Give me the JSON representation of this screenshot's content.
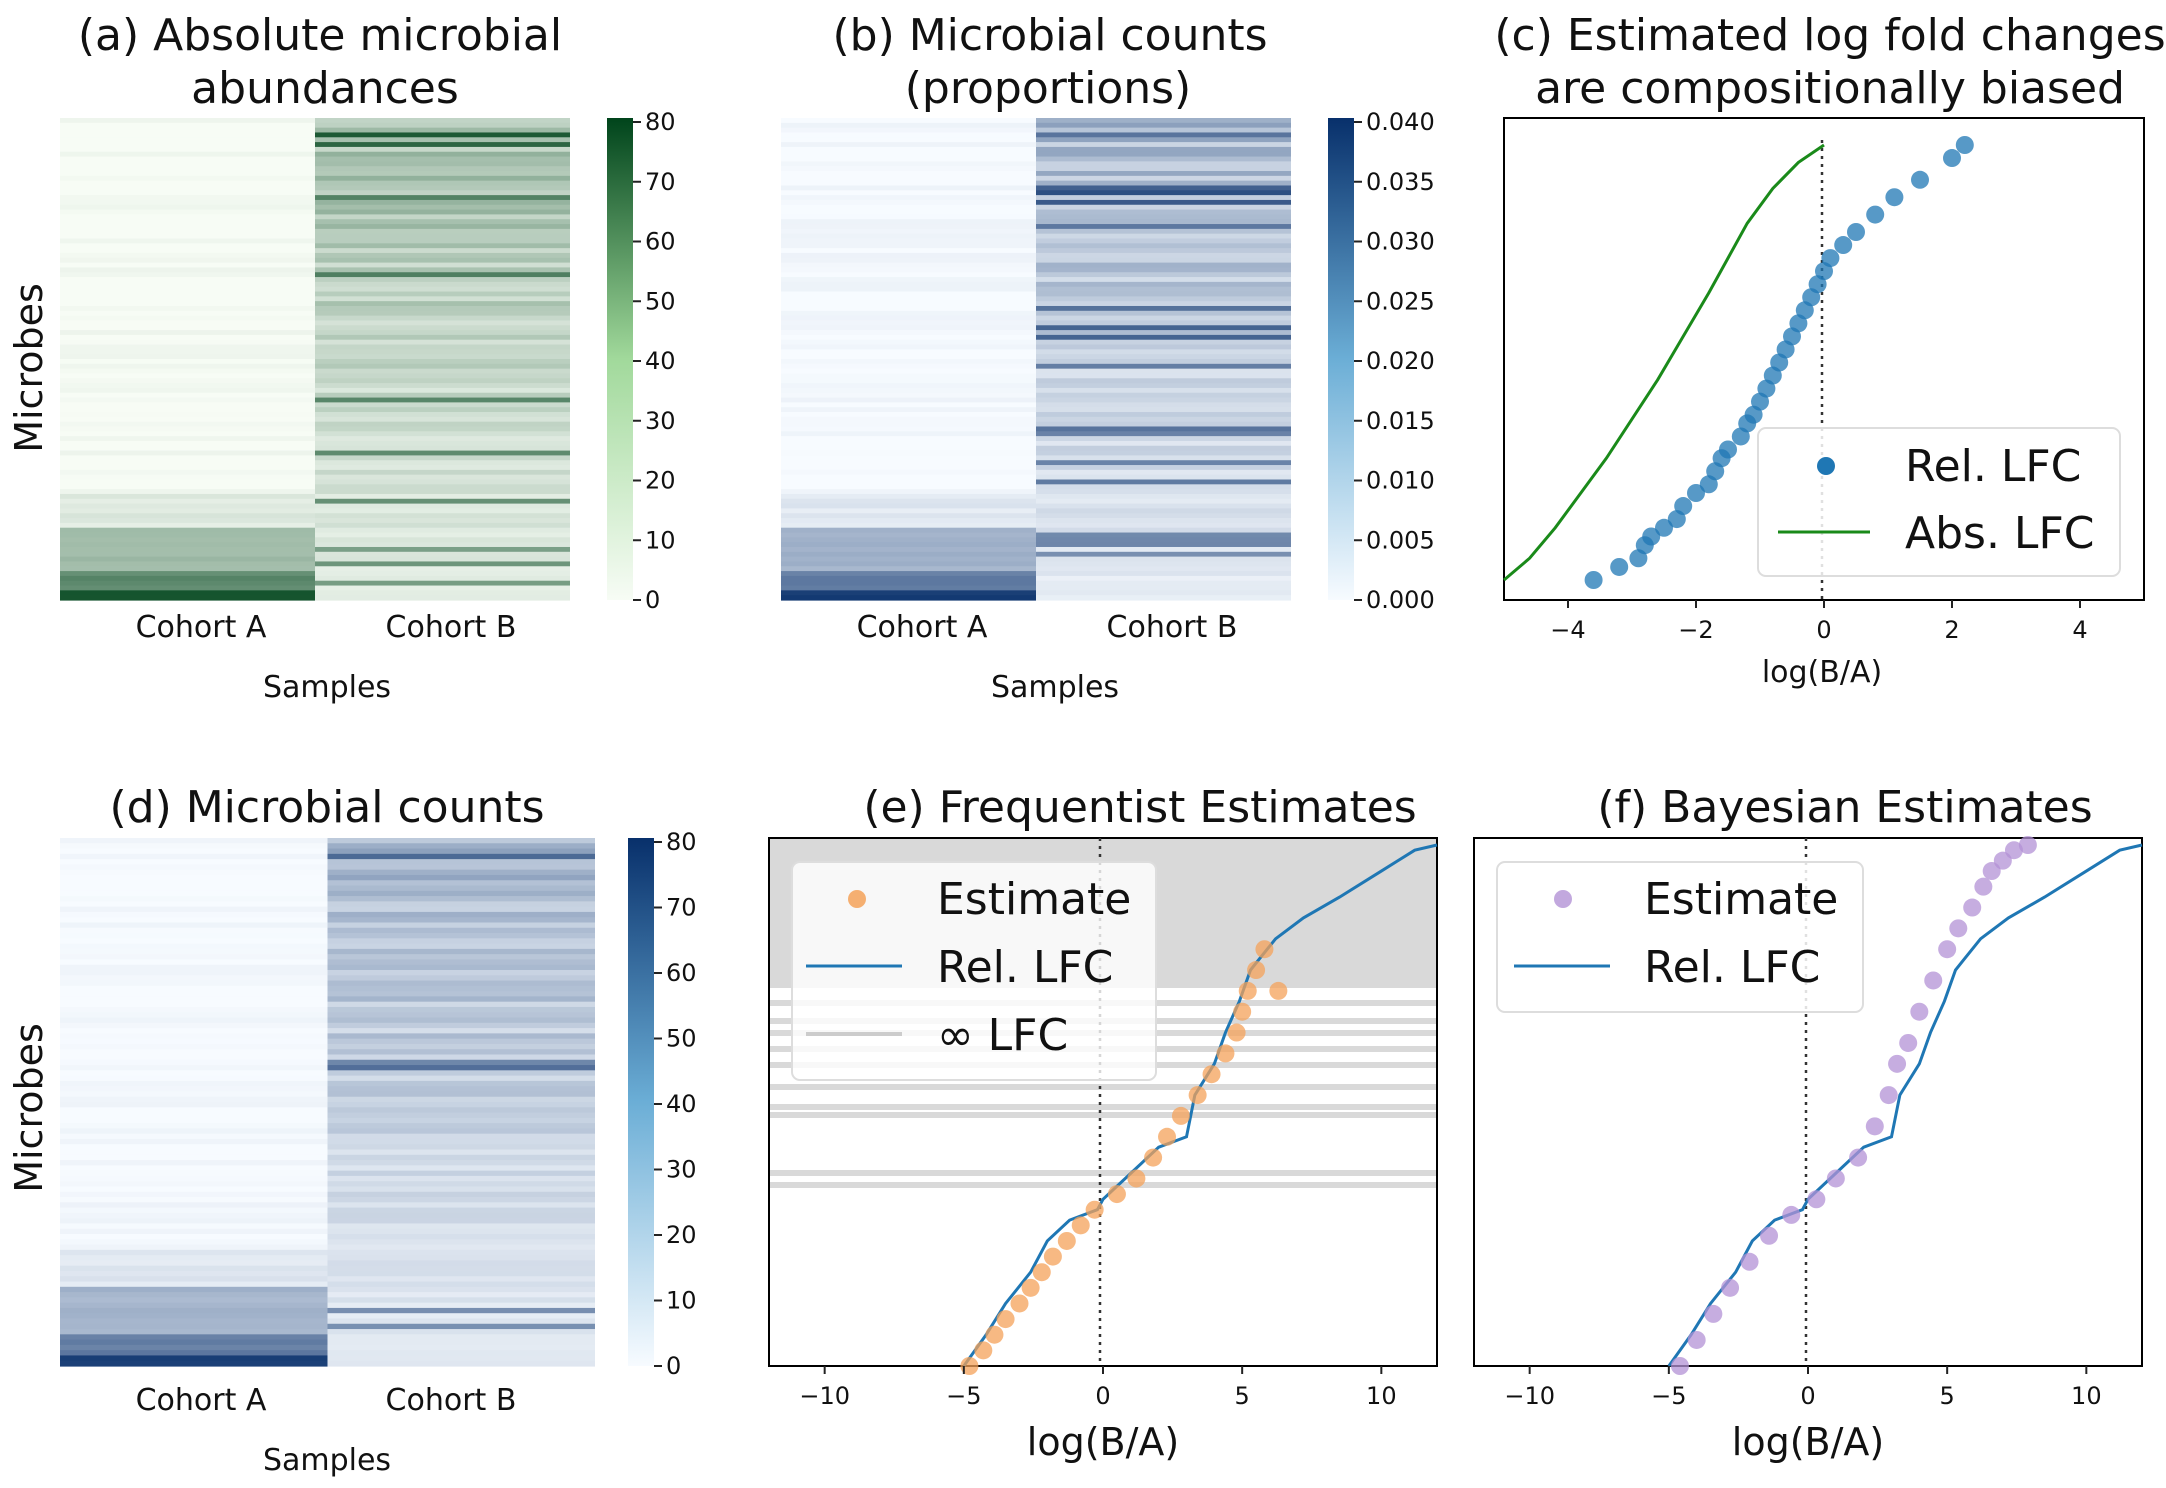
{
  "panels": {
    "a": {
      "title_line1": "(a) Absolute microbial",
      "title_line2": "abundances",
      "ylabel": "Microbes",
      "xlabel": "Samples",
      "cohorts": [
        "Cohort A",
        "Cohort B"
      ],
      "colorbar_ticks": [
        "0",
        "10",
        "20",
        "30",
        "40",
        "50",
        "60",
        "70",
        "80"
      ],
      "colormap_colors": [
        "#f7fcf5",
        "#00441b"
      ]
    },
    "b": {
      "title_line1": "(b) Microbial counts",
      "title_line2": "(proportions)",
      "xlabel": "Samples",
      "cohorts": [
        "Cohort A",
        "Cohort B"
      ],
      "colorbar_ticks": [
        "0.000",
        "0.005",
        "0.010",
        "0.015",
        "0.020",
        "0.025",
        "0.030",
        "0.035",
        "0.040"
      ],
      "colormap_colors": [
        "#f7fbff",
        "#08306b"
      ]
    },
    "c": {
      "title_line1": "(c) Estimated log fold changes",
      "title_line2": "are compositionally biased",
      "xlabel": "log(B/A)",
      "xticks": [
        "−4",
        "−2",
        "0",
        "2",
        "4"
      ],
      "legend": [
        "Rel. LFC",
        "Abs. LFC"
      ]
    },
    "d": {
      "title": "(d) Microbial counts",
      "ylabel": "Microbes",
      "xlabel": "Samples",
      "cohorts": [
        "Cohort A",
        "Cohort B"
      ],
      "colorbar_ticks": [
        "0",
        "10",
        "20",
        "30",
        "40",
        "50",
        "60",
        "70",
        "80"
      ],
      "colormap_colors": [
        "#f7fbff",
        "#08306b"
      ]
    },
    "e": {
      "title": "(e) Frequentist Estimates",
      "xlabel": "log(B/A)",
      "xticks": [
        "−10",
        "−5",
        "0",
        "5",
        "10"
      ],
      "legend": [
        "Estimate",
        "Rel. LFC",
        "∞ LFC"
      ]
    },
    "f": {
      "title": "(f) Bayesian Estimates",
      "xlabel": "log(B/A)",
      "xticks": [
        "−10",
        "−5",
        "0",
        "5",
        "10"
      ],
      "legend": [
        "Estimate",
        "Rel. LFC"
      ]
    }
  },
  "chart_data": [
    {
      "type": "heatmap",
      "panel": "a",
      "title": "(a) Absolute microbial abundances",
      "xlabel": "Samples",
      "ylabel": "Microbes",
      "color_range": [
        0,
        80
      ],
      "cohort_a_profile": [
        {
          "rows": [
            0,
            77
          ],
          "level": 0.5
        },
        {
          "rows": [
            78,
            84
          ],
          "level": 8
        },
        {
          "rows": [
            85,
            93
          ],
          "level": 28
        },
        {
          "rows": [
            94,
            97
          ],
          "level": 50
        },
        {
          "rows": [
            98,
            99
          ],
          "level": 75
        }
      ],
      "cohort_b_profile": "fading from ~60 (top) to ~5 (bottom) with bright stripes"
    },
    {
      "type": "heatmap",
      "panel": "b",
      "title": "(b) Microbial counts (proportions)",
      "xlabel": "Samples",
      "color_range": [
        0.0,
        0.04
      ]
    },
    {
      "type": "line",
      "panel": "c",
      "title": "(c) Estimated log fold changes are compositionally biased",
      "xlabel": "log(B/A)",
      "xlim": [
        -5,
        5
      ],
      "series": [
        {
          "name": "Rel. LFC",
          "kind": "scatter",
          "x": [
            -3.6,
            -3.2,
            -2.9,
            -2.8,
            -2.7,
            -2.5,
            -2.3,
            -2.2,
            -2.0,
            -1.8,
            -1.7,
            -1.6,
            -1.5,
            -1.3,
            -1.2,
            -1.1,
            -1.0,
            -0.9,
            -0.8,
            -0.7,
            -0.6,
            -0.5,
            -0.4,
            -0.3,
            -0.2,
            -0.1,
            0.0,
            0.1,
            0.3,
            0.5,
            0.8,
            1.1,
            1.5,
            2.0,
            2.2
          ],
          "y": [
            0,
            0.03,
            0.05,
            0.08,
            0.1,
            0.12,
            0.14,
            0.17,
            0.2,
            0.22,
            0.25,
            0.28,
            0.3,
            0.33,
            0.36,
            0.38,
            0.41,
            0.44,
            0.47,
            0.5,
            0.53,
            0.56,
            0.59,
            0.62,
            0.65,
            0.68,
            0.71,
            0.74,
            0.77,
            0.8,
            0.84,
            0.88,
            0.92,
            0.97,
            1.0
          ]
        },
        {
          "name": "Abs. LFC",
          "kind": "line",
          "x": [
            -5.0,
            -4.6,
            -4.2,
            -3.8,
            -3.4,
            -3.0,
            -2.6,
            -2.2,
            -1.8,
            -1.5,
            -1.2,
            -0.8,
            -0.4,
            0.0
          ],
          "y": [
            0,
            0.05,
            0.12,
            0.2,
            0.28,
            0.37,
            0.46,
            0.56,
            0.66,
            0.74,
            0.82,
            0.9,
            0.96,
            1.0
          ]
        }
      ]
    },
    {
      "type": "heatmap",
      "panel": "d",
      "title": "(d) Microbial counts",
      "xlabel": "Samples",
      "ylabel": "Microbes",
      "color_range": [
        0,
        80
      ]
    },
    {
      "type": "scatter",
      "panel": "e",
      "title": "(e) Frequentist Estimates",
      "xlabel": "log(B/A)",
      "xlim": [
        -12,
        12
      ],
      "series": [
        {
          "name": "Rel. LFC",
          "kind": "line",
          "x": [
            -5.0,
            -4.2,
            -3.5,
            -2.6,
            -2.0,
            -1.2,
            -0.2,
            0.0,
            1.0,
            2.0,
            3.0,
            3.3,
            4.0,
            4.4,
            4.9,
            5.3,
            5.6,
            6.2,
            7.2,
            8.5,
            10.0,
            11.2,
            12.0
          ],
          "y": [
            0,
            0.06,
            0.12,
            0.18,
            0.24,
            0.28,
            0.3,
            0.32,
            0.37,
            0.42,
            0.44,
            0.52,
            0.58,
            0.64,
            0.7,
            0.76,
            0.78,
            0.82,
            0.86,
            0.9,
            0.95,
            0.99,
            1.0
          ]
        },
        {
          "name": "Estimate",
          "kind": "scatter",
          "x": [
            -4.8,
            -4.3,
            -3.9,
            -3.5,
            -3.0,
            -2.6,
            -2.2,
            -1.8,
            -1.3,
            -0.8,
            -0.3,
            0.5,
            1.2,
            1.8,
            2.3,
            2.8,
            3.4,
            3.9,
            4.4,
            4.8,
            5.0,
            5.2,
            5.5,
            5.8,
            6.3
          ],
          "y": [
            0.0,
            0.03,
            0.06,
            0.09,
            0.12,
            0.15,
            0.18,
            0.21,
            0.24,
            0.27,
            0.3,
            0.33,
            0.36,
            0.4,
            0.44,
            0.48,
            0.52,
            0.56,
            0.6,
            0.64,
            0.68,
            0.72,
            0.76,
            0.8,
            0.72
          ]
        }
      ]
    },
    {
      "type": "scatter",
      "panel": "f",
      "title": "(f) Bayesian Estimates",
      "xlabel": "log(B/A)",
      "xlim": [
        -12,
        12
      ],
      "series": [
        {
          "name": "Rel. LFC",
          "kind": "line",
          "x": [
            -5.0,
            -4.2,
            -3.5,
            -2.6,
            -2.0,
            -1.2,
            -0.2,
            0.0,
            1.0,
            2.0,
            3.0,
            3.3,
            4.0,
            4.4,
            4.9,
            5.3,
            5.6,
            6.2,
            7.2,
            8.5,
            10.0,
            11.2,
            12.0
          ],
          "y": [
            0,
            0.06,
            0.12,
            0.18,
            0.24,
            0.28,
            0.3,
            0.32,
            0.37,
            0.42,
            0.44,
            0.52,
            0.58,
            0.64,
            0.7,
            0.76,
            0.78,
            0.82,
            0.86,
            0.9,
            0.95,
            0.99,
            1.0
          ]
        },
        {
          "name": "Estimate",
          "kind": "scatter",
          "x": [
            -4.6,
            -4.0,
            -3.4,
            -2.8,
            -2.1,
            -1.4,
            -0.6,
            0.3,
            1.0,
            1.8,
            2.4,
            2.9,
            3.2,
            3.6,
            4.0,
            4.5,
            5.0,
            5.4,
            5.9,
            6.3,
            6.6,
            7.0,
            7.4,
            7.9
          ],
          "y": [
            0.0,
            0.05,
            0.1,
            0.15,
            0.2,
            0.25,
            0.29,
            0.32,
            0.36,
            0.4,
            0.46,
            0.52,
            0.58,
            0.62,
            0.68,
            0.74,
            0.8,
            0.84,
            0.88,
            0.92,
            0.95,
            0.97,
            0.99,
            1.0
          ]
        }
      ]
    }
  ]
}
